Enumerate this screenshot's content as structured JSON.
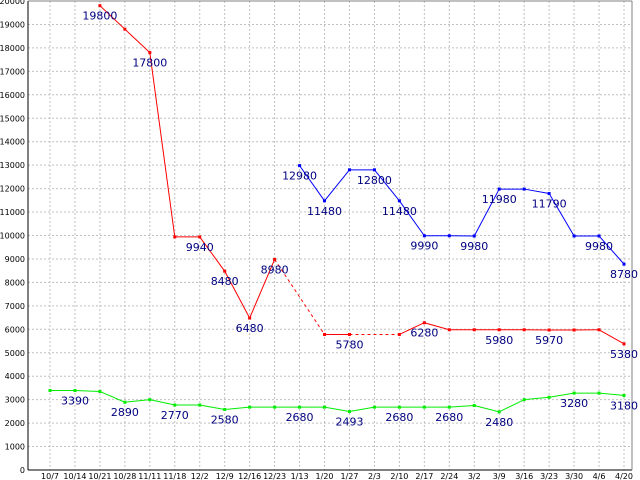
{
  "chart_data": {
    "type": "line",
    "title": "",
    "xlabel": "",
    "ylabel": "",
    "ylim": [
      0,
      20000
    ],
    "y_tick_step": 1000,
    "grid": true,
    "legend": "none",
    "categories": [
      "10/7",
      "10/14",
      "10/21",
      "10/28",
      "11/11",
      "11/18",
      "12/2",
      "12/9",
      "12/16",
      "12/23",
      "1/13",
      "1/20",
      "1/27",
      "2/3",
      "2/10",
      "2/17",
      "2/24",
      "3/2",
      "3/9",
      "3/16",
      "3/23",
      "3/30",
      "4/6",
      "4/20"
    ],
    "series": [
      {
        "color": "#ff0000",
        "values": [
          null,
          null,
          19800,
          18800,
          17800,
          9940,
          9940,
          8480,
          6480,
          8980,
          null,
          5780,
          5780,
          null,
          5780,
          6280,
          5980,
          5980,
          5980,
          5980,
          5970,
          5970,
          5980,
          5380
        ],
        "dashed_gaps": [
          [
            9,
            11
          ],
          [
            12,
            14
          ]
        ],
        "labels": [
          null,
          null,
          "19800",
          null,
          "17800",
          null,
          "9940",
          "8480",
          "6480",
          "8980",
          null,
          null,
          "5780",
          null,
          null,
          "6280",
          null,
          null,
          "5980",
          null,
          "5970",
          null,
          null,
          "5380"
        ]
      },
      {
        "color": "#0000ff",
        "values": [
          null,
          null,
          null,
          null,
          null,
          null,
          null,
          null,
          null,
          null,
          12980,
          11480,
          12800,
          12800,
          11480,
          9990,
          9990,
          9980,
          11980,
          11980,
          11790,
          9980,
          9980,
          8780
        ],
        "labels": [
          null,
          null,
          null,
          null,
          null,
          null,
          null,
          null,
          null,
          null,
          "12980",
          "11480",
          null,
          "12800",
          "11480",
          "9990",
          null,
          "9980",
          "11980",
          null,
          "11790",
          null,
          "9980",
          "8780"
        ]
      },
      {
        "color": "#00ee00",
        "values": [
          3390,
          3390,
          3350,
          2890,
          3000,
          2770,
          2770,
          2580,
          2680,
          2680,
          2680,
          2680,
          2493,
          2680,
          2680,
          2680,
          2680,
          2750,
          2480,
          3000,
          3100,
          3280,
          3280,
          3180
        ],
        "labels": [
          null,
          "3390",
          null,
          "2890",
          null,
          "2770",
          null,
          "2580",
          null,
          null,
          "2680",
          null,
          "2493",
          null,
          "2680",
          null,
          "2680",
          null,
          "2480",
          null,
          null,
          "3280",
          null,
          "3180"
        ]
      }
    ]
  }
}
